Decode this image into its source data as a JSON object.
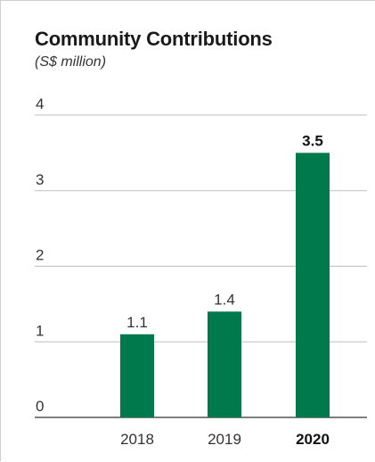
{
  "chart_data": {
    "type": "bar",
    "title": "Community Contributions",
    "subtitle": "(S$ million)",
    "categories": [
      "2018",
      "2019",
      "2020"
    ],
    "values": [
      1.1,
      1.4,
      3.5
    ],
    "value_labels": [
      "1.1",
      "1.4",
      "3.5"
    ],
    "highlight_category": "2020",
    "ylim": [
      0,
      4
    ],
    "yticks": [
      0,
      1,
      2,
      3,
      4
    ],
    "xlabel": "",
    "ylabel": "",
    "grid": true,
    "bar_color": "#007a4d",
    "grid_color": "#bfbfbf",
    "axis_color": "#333333"
  }
}
